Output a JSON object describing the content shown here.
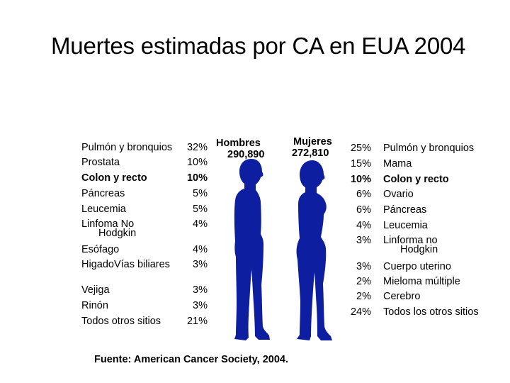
{
  "title": "Muertes estimadas por CA en EUA 2004",
  "men": {
    "label": "Hombres",
    "total": "290,890",
    "rows": [
      {
        "site": "Pulmón y bronquios",
        "pct": "32%"
      },
      {
        "site": "Prostata",
        "pct": "10%"
      },
      {
        "site": "Colon y recto",
        "pct": "10%",
        "bold": true
      },
      {
        "site": "Páncreas",
        "pct": "5%"
      },
      {
        "site": "Leucemia",
        "pct": "5%"
      },
      {
        "site": "Linfoma No",
        "site2": "Hodgkin",
        "pct": "4%"
      },
      {
        "site": "Esófago",
        "pct": "4%"
      },
      {
        "site": "HigadoVías biliares",
        "pct": "3%"
      },
      {
        "site": "Vejiga",
        "pct": "3%"
      },
      {
        "site": "Rinón",
        "pct": "3%"
      },
      {
        "site": "Todos otros sitios",
        "pct": "21%"
      }
    ]
  },
  "women": {
    "label": "Mujeres",
    "total": "272,810",
    "rows": [
      {
        "site": "Pulmón y bronquios",
        "pct": "25%"
      },
      {
        "site": "Mama",
        "pct": "15%"
      },
      {
        "site": "Colon y recto",
        "pct": "10%",
        "bold": true
      },
      {
        "site": "Ovario",
        "pct": "6%"
      },
      {
        "site": "Páncreas",
        "pct": "6%"
      },
      {
        "site": "Leucemia",
        "pct": "4%"
      },
      {
        "site": "Linforma no",
        "site2": "Hodgkin",
        "pct": "3%"
      },
      {
        "site": "Cuerpo uterino",
        "pct": "3%"
      },
      {
        "site": "Mieloma múltiple",
        "pct": "2%"
      },
      {
        "site": "Cerebro",
        "pct": "2%"
      },
      {
        "site": "Todos los otros sitios",
        "pct": "24%"
      }
    ]
  },
  "source": "Fuente: American Cancer Society, 2004.",
  "colors": {
    "silhouette": "#0d1fa0"
  },
  "chart_data": {
    "type": "table",
    "title": "Muertes estimadas por CA en EUA 2004",
    "series": [
      {
        "name": "Hombres",
        "total": 290890,
        "categories": [
          "Pulmón y bronquios",
          "Prostata",
          "Colon y recto",
          "Páncreas",
          "Leucemia",
          "Linfoma No Hodgkin",
          "Esófago",
          "HigadoVías biliares",
          "Vejiga",
          "Rinón",
          "Todos otros sitios"
        ],
        "values": [
          32,
          10,
          10,
          5,
          5,
          4,
          4,
          3,
          3,
          3,
          21
        ]
      },
      {
        "name": "Mujeres",
        "total": 272810,
        "categories": [
          "Pulmón y bronquios",
          "Mama",
          "Colon y recto",
          "Ovario",
          "Páncreas",
          "Leucemia",
          "Linforma no Hodgkin",
          "Cuerpo uterino",
          "Mieloma múltiple",
          "Cerebro",
          "Todos los otros sitios"
        ],
        "values": [
          25,
          15,
          10,
          6,
          6,
          4,
          3,
          3,
          2,
          2,
          24
        ]
      }
    ]
  }
}
